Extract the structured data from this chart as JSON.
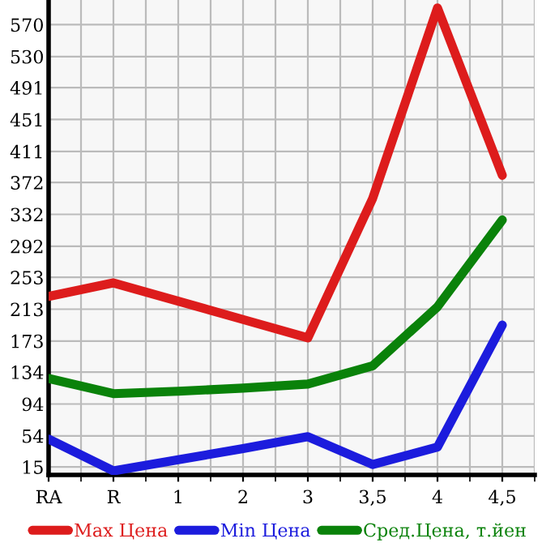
{
  "chart_data": {
    "type": "line",
    "categories": [
      "RA",
      "R",
      "1",
      "2",
      "3",
      "3,5",
      "4",
      "4,5"
    ],
    "series": [
      {
        "name": "Max Цена",
        "color": "#dd1c1c",
        "values": [
          229,
          246,
          223,
          200,
          177,
          352,
          591,
          381
        ]
      },
      {
        "name": "Min Цена",
        "color": "#1c1cdd",
        "values": [
          50,
          10,
          24,
          38,
          53,
          18,
          40,
          193
        ]
      },
      {
        "name": "Сред.Цена, т.йен",
        "color": "#0a820a",
        "values": [
          126,
          107,
          110,
          114,
          119,
          142,
          216,
          325
        ]
      }
    ],
    "ylim": [
      5,
      601
    ],
    "yticks": [
      15,
      54,
      94,
      134,
      173,
      213,
      253,
      292,
      332,
      372,
      411,
      451,
      491,
      530,
      570
    ],
    "grid": true,
    "legend": "bottom",
    "marker": "none",
    "line_style": "solid"
  }
}
